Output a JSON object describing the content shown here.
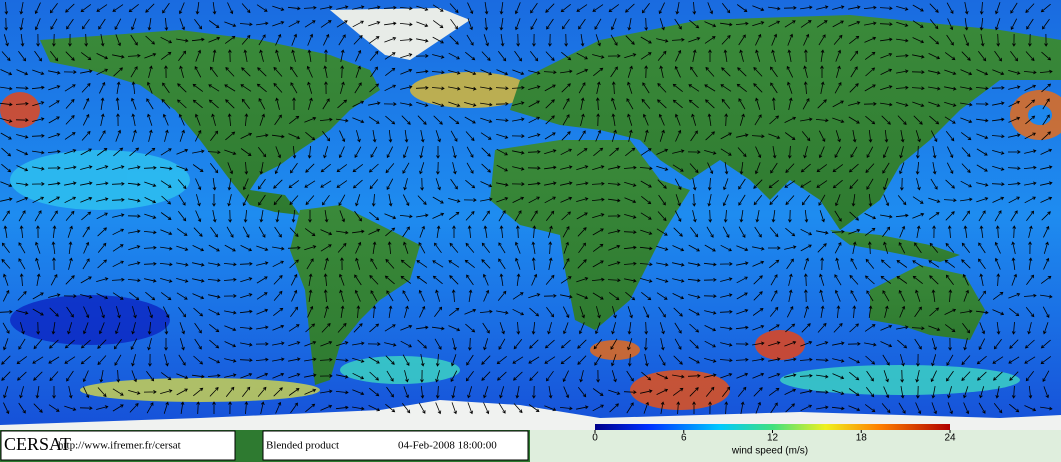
{
  "footer": {
    "logo": "CERSAT",
    "url": "http://www.ifremer.fr/cersat",
    "product": "Blended product",
    "date": "04-Feb-2008 18:00:00"
  },
  "colorbar": {
    "label": "wind speed (m/s)",
    "lim": [
      0,
      24
    ],
    "ticks": [
      0,
      6,
      12,
      18,
      24
    ]
  }
}
